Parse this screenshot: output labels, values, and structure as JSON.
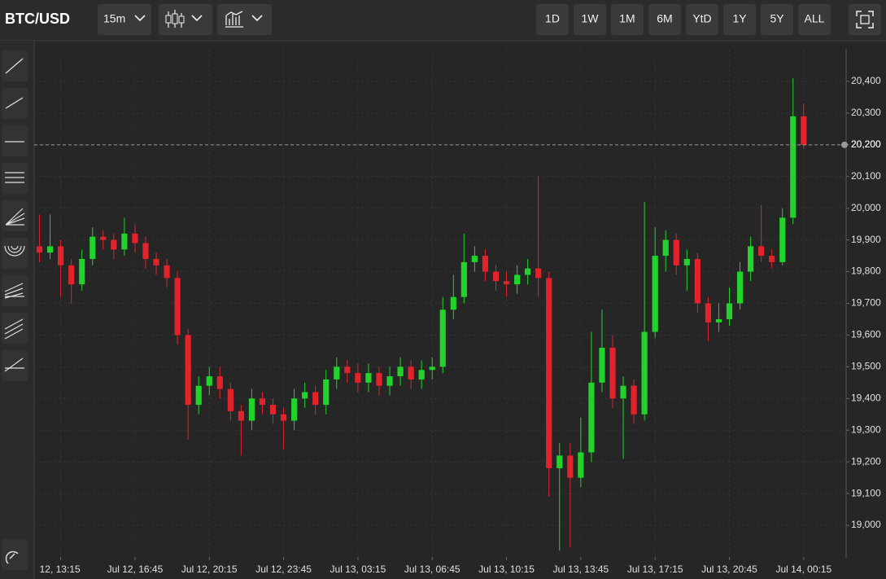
{
  "toolbar": {
    "symbol": "BTC/USD",
    "interval": "15m",
    "ranges": [
      "1D",
      "1W",
      "1M",
      "6M",
      "YtD",
      "1Y",
      "5Y",
      "ALL"
    ]
  },
  "chart_data": {
    "type": "candlestick",
    "x": [
      -2,
      -1,
      0,
      1,
      2,
      3,
      4,
      5,
      6,
      7,
      8,
      9,
      10,
      11,
      12,
      13,
      14,
      15,
      16,
      17,
      18,
      19,
      20,
      21,
      22,
      23,
      24,
      25,
      26,
      27,
      28,
      29,
      30,
      31,
      32,
      33,
      34,
      35,
      36,
      37,
      38,
      39,
      40,
      41,
      42,
      43,
      44,
      45,
      46,
      47,
      48,
      49,
      50,
      51,
      52,
      53,
      54,
      55,
      56,
      57,
      58,
      59,
      60,
      61,
      62,
      63,
      64,
      65,
      66,
      67,
      68,
      69,
      70
    ],
    "open": [
      19880,
      19860,
      19880,
      19820,
      19760,
      19840,
      19910,
      19900,
      19870,
      19920,
      19890,
      19840,
      19820,
      19780,
      19600,
      19380,
      19440,
      19470,
      19430,
      19360,
      19330,
      19400,
      19380,
      19350,
      19330,
      19400,
      19420,
      19380,
      19460,
      19500,
      19480,
      19450,
      19480,
      19440,
      19470,
      19500,
      19460,
      19490,
      19500,
      19680,
      19720,
      19830,
      19850,
      19800,
      19770,
      19760,
      19790,
      19810,
      19780,
      19180,
      19220,
      19150,
      19230,
      19450,
      19560,
      19400,
      19440,
      19350,
      19610,
      19850,
      19900,
      19820,
      19840,
      19700,
      19640,
      19650,
      19700,
      19800,
      19880,
      19850,
      19830,
      19970,
      20290
    ],
    "high": [
      19980,
      19980,
      19900,
      19840,
      19870,
      19940,
      19930,
      19920,
      19970,
      19950,
      19910,
      19860,
      19840,
      19800,
      19620,
      19470,
      19500,
      19500,
      19450,
      19380,
      19430,
      19420,
      19400,
      19370,
      19430,
      19450,
      19440,
      19490,
      19530,
      19520,
      19510,
      19510,
      19500,
      19500,
      19530,
      19520,
      19520,
      19530,
      19720,
      19790,
      19920,
      19880,
      19870,
      19820,
      19800,
      19820,
      19840,
      20100,
      19800,
      19260,
      19260,
      19340,
      19610,
      19680,
      19600,
      19470,
      19460,
      20020,
      19940,
      19930,
      19920,
      19870,
      19860,
      19720,
      19700,
      19750,
      19830,
      19910,
      20010,
      19870,
      20000,
      20410,
      20330
    ],
    "low": [
      19830,
      19840,
      19720,
      19700,
      19740,
      19820,
      19870,
      19840,
      19850,
      19860,
      19810,
      19790,
      19750,
      19570,
      19270,
      19350,
      19410,
      19400,
      19330,
      19220,
      19300,
      19350,
      19320,
      19240,
      19300,
      19370,
      19350,
      19350,
      19430,
      19450,
      19420,
      19420,
      19410,
      19410,
      19440,
      19430,
      19430,
      19460,
      19480,
      19650,
      19700,
      19800,
      19770,
      19740,
      19720,
      19730,
      19760,
      19720,
      19090,
      18920,
      18930,
      19120,
      19200,
      19420,
      19370,
      19210,
      19320,
      19330,
      19590,
      19800,
      19790,
      19740,
      19670,
      19580,
      19610,
      19630,
      19680,
      19770,
      19830,
      19810,
      19820,
      19950,
      20190
    ],
    "close": [
      19860,
      19880,
      19820,
      19760,
      19840,
      19910,
      19900,
      19870,
      19920,
      19890,
      19840,
      19820,
      19780,
      19600,
      19380,
      19440,
      19470,
      19430,
      19360,
      19330,
      19400,
      19380,
      19350,
      19330,
      19400,
      19420,
      19380,
      19460,
      19500,
      19480,
      19450,
      19480,
      19440,
      19470,
      19500,
      19460,
      19490,
      19500,
      19680,
      19720,
      19830,
      19850,
      19800,
      19770,
      19760,
      19790,
      19810,
      19780,
      19180,
      19220,
      19150,
      19230,
      19450,
      19560,
      19400,
      19440,
      19350,
      19610,
      19850,
      19900,
      19820,
      19840,
      19700,
      19640,
      19650,
      19700,
      19800,
      19880,
      19850,
      19830,
      19970,
      20290,
      20200
    ],
    "up_color": "#22d32b",
    "down_color": "#e3232c",
    "xlim": [
      -2.5,
      74
    ],
    "xticks": [
      {
        "value": 0,
        "label": "12, 13:15"
      },
      {
        "value": 7,
        "label": "Jul 12, 16:45"
      },
      {
        "value": 14,
        "label": "Jul 12, 20:15"
      },
      {
        "value": 21,
        "label": "Jul 12, 23:45"
      },
      {
        "value": 28,
        "label": "Jul 13, 03:15"
      },
      {
        "value": 35,
        "label": "Jul 13, 06:45"
      },
      {
        "value": 42,
        "label": "Jul 13, 10:15"
      },
      {
        "value": 49,
        "label": "Jul 13, 13:45"
      },
      {
        "value": 56,
        "label": "Jul 13, 17:15"
      },
      {
        "value": 63,
        "label": "Jul 13, 20:45"
      },
      {
        "value": 70,
        "label": "Jul 14, 00:15"
      }
    ],
    "ylim": [
      18900,
      20500
    ],
    "yticks": [
      {
        "value": 19000,
        "label": "19,000"
      },
      {
        "value": 19100,
        "label": "19,100"
      },
      {
        "value": 19200,
        "label": "19,200"
      },
      {
        "value": 19300,
        "label": "19,300"
      },
      {
        "value": 19400,
        "label": "19,400"
      },
      {
        "value": 19500,
        "label": "19,500"
      },
      {
        "value": 19600,
        "label": "19,600"
      },
      {
        "value": 19700,
        "label": "19,700"
      },
      {
        "value": 19800,
        "label": "19,800"
      },
      {
        "value": 19900,
        "label": "19,900"
      },
      {
        "value": 20000,
        "label": "20,000"
      },
      {
        "value": 20100,
        "label": "20,100"
      },
      {
        "value": 20200,
        "label": "20,200"
      },
      {
        "value": 20300,
        "label": "20,300"
      },
      {
        "value": 20400,
        "label": "20,400"
      }
    ],
    "last_price": {
      "value": 20200,
      "label": "20,200"
    },
    "grid": true
  }
}
